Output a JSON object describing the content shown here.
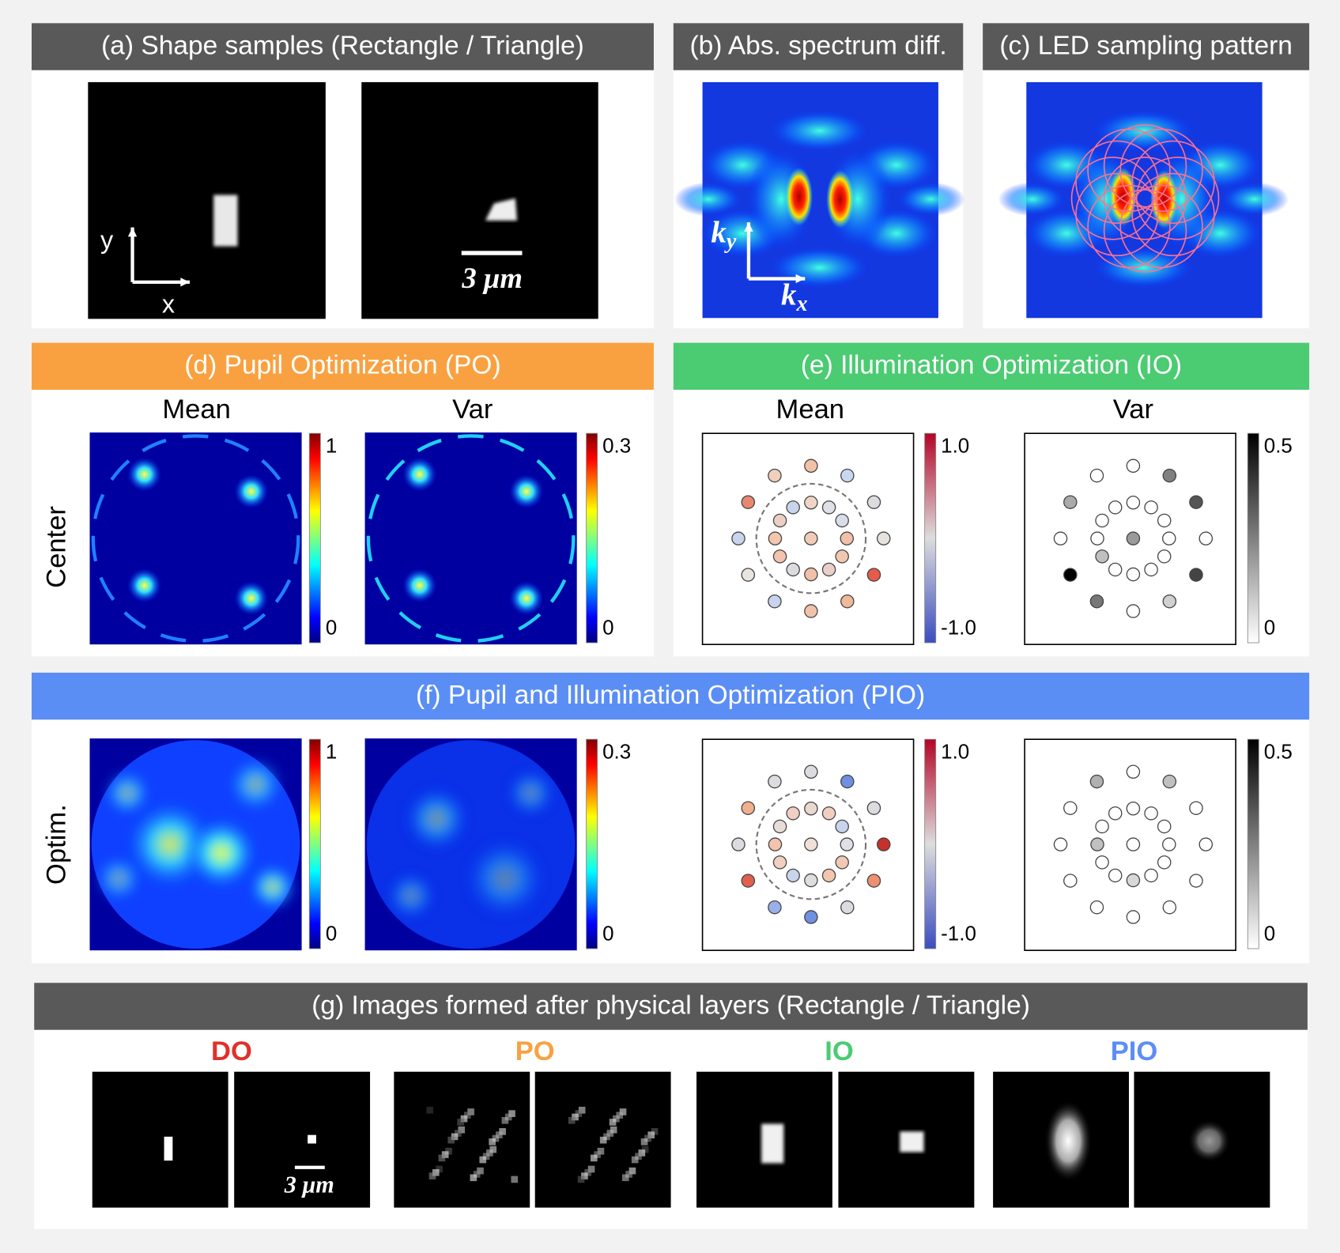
{
  "panels": {
    "a": {
      "title": "(a) Shape samples (Rectangle / Triangle)",
      "axis_y": "y",
      "axis_x": "x",
      "scale_bar": "3 μm"
    },
    "b": {
      "title": "(b) Abs. spectrum diff.",
      "axis_y": {
        "base": "k",
        "sub": "y"
      },
      "axis_x": {
        "base": "k",
        "sub": "x"
      }
    },
    "c": {
      "title": "(c) LED sampling pattern"
    },
    "d": {
      "title": "(d) Pupil Optimization (PO)",
      "columns": [
        "Mean",
        "Var"
      ],
      "row_label": "Center",
      "colorbars": [
        {
          "max": "1",
          "min": "0"
        },
        {
          "max": "0.3",
          "min": "0"
        }
      ]
    },
    "e": {
      "title": "(e) Illumination Optimization (IO)",
      "columns": [
        "Mean",
        "Var"
      ],
      "colorbars": [
        {
          "max": "1.0",
          "min": "-1.0"
        },
        {
          "max": "0.5",
          "min": "0"
        }
      ]
    },
    "f": {
      "title": "(f) Pupil and Illumination Optimization (PIO)",
      "row_label": "Optim.",
      "colorbars": [
        {
          "max": "1",
          "min": "0"
        },
        {
          "max": "0.3",
          "min": "0"
        },
        {
          "max": "1.0",
          "min": "-1.0"
        },
        {
          "max": "0.5",
          "min": "0"
        }
      ]
    },
    "g": {
      "title": "(g) Images formed after physical layers (Rectangle / Triangle)",
      "methods": [
        "DO",
        "PO",
        "IO",
        "PIO"
      ],
      "scale_bar": "3 μm"
    }
  }
}
